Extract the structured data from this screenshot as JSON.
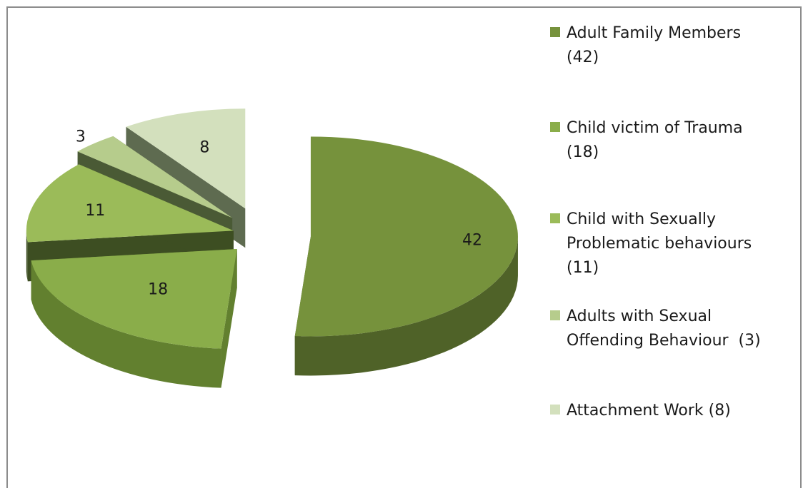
{
  "chart_data": {
    "type": "pie",
    "title": "",
    "three_d": true,
    "exploded": true,
    "slices": [
      {
        "name": "Adult Family Members",
        "value": 42,
        "label": "42",
        "color": "#76923c",
        "side_color": "#4f6228"
      },
      {
        "name": "Child victim of Trauma",
        "value": 18,
        "label": "18",
        "color": "#8aad4a",
        "side_color": "#62802f"
      },
      {
        "name": "Child with Sexually Problematic behaviours",
        "value": 11,
        "label": "11",
        "color": "#9bbb59",
        "side_color": "#3d4e22"
      },
      {
        "name": "Adults with Sexual Offending Behaviour",
        "value": 3,
        "label": "3",
        "color": "#b6cc8c",
        "side_color": "#4a5a35"
      },
      {
        "name": "Attachment Work",
        "value": 8,
        "label": "8",
        "color": "#d3e0bd",
        "side_color": "#5e6b50"
      }
    ],
    "legend_position": "right"
  },
  "legend": {
    "items": [
      {
        "text": "Adult Family Members\n(42)",
        "color": "#76923c"
      },
      {
        "text": "Child victim of Trauma\n(18)",
        "color": "#8aad4a"
      },
      {
        "text": "Child with Sexually\nProblematic behaviours\n(11)",
        "color": "#9bbb59"
      },
      {
        "text": "Adults with Sexual\nOffending Behaviour  (3)",
        "color": "#b6cc8c"
      },
      {
        "text": "Attachment Work (8)",
        "color": "#d3e0bd"
      }
    ]
  }
}
